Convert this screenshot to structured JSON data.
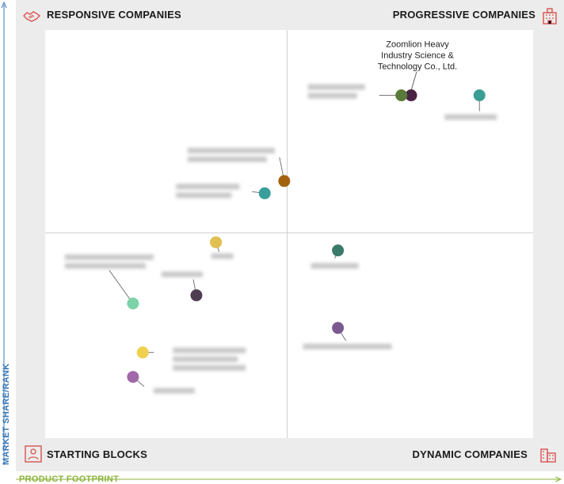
{
  "quadrants": {
    "top_left": "RESPONSIVE COMPANIES",
    "top_right": "PROGRESSIVE COMPANIES",
    "bottom_left": "STARTING BLOCKS",
    "bottom_right": "DYNAMIC COMPANIES"
  },
  "axes": {
    "x_label": "PRODUCT FOOTPRINT",
    "y_label": "MARKET SHARE/RANK"
  },
  "colors": {
    "x_axis": "#8cb33a",
    "y_axis": "#3a78b5",
    "icon": "#d9534f"
  },
  "icons": {
    "top_left": "handshake-icon",
    "top_right": "building-icon",
    "bottom_left": "puzzle-person-icon",
    "bottom_right": "city-icon"
  },
  "chart_data": {
    "type": "scatter",
    "xlabel": "PRODUCT FOOTPRINT",
    "ylabel": "MARKET SHARE/RANK",
    "xlim": [
      0,
      100
    ],
    "ylim": [
      0,
      100
    ],
    "points": [
      {
        "label": "Zoomlion Heavy Industry Science & Technology Co., Ltd.",
        "x": 75,
        "y": 84,
        "color": "#4a2244",
        "legible": true
      },
      {
        "label": "",
        "x": 73,
        "y": 84,
        "color": "#5a7a3a",
        "legible": false
      },
      {
        "label": "",
        "x": 89,
        "y": 84,
        "color": "#3a9e94",
        "legible": false
      },
      {
        "label": "",
        "x": 49,
        "y": 63,
        "color": "#a36210",
        "legible": false
      },
      {
        "label": "",
        "x": 45,
        "y": 60,
        "color": "#3a9e9a",
        "legible": false
      },
      {
        "label": "",
        "x": 35,
        "y": 48,
        "color": "#e0c050",
        "legible": false
      },
      {
        "label": "",
        "x": 31,
        "y": 35,
        "color": "#4e3e50",
        "legible": false
      },
      {
        "label": "",
        "x": 18,
        "y": 33,
        "color": "#7dd3a8",
        "legible": false
      },
      {
        "label": "",
        "x": 20,
        "y": 21,
        "color": "#f0d050",
        "legible": false
      },
      {
        "label": "",
        "x": 18,
        "y": 15,
        "color": "#a068a8",
        "legible": false
      },
      {
        "label": "",
        "x": 60,
        "y": 46,
        "color": "#3a7a6a",
        "legible": false
      },
      {
        "label": "",
        "x": 60,
        "y": 27,
        "color": "#7a5a90",
        "legible": false
      }
    ]
  }
}
